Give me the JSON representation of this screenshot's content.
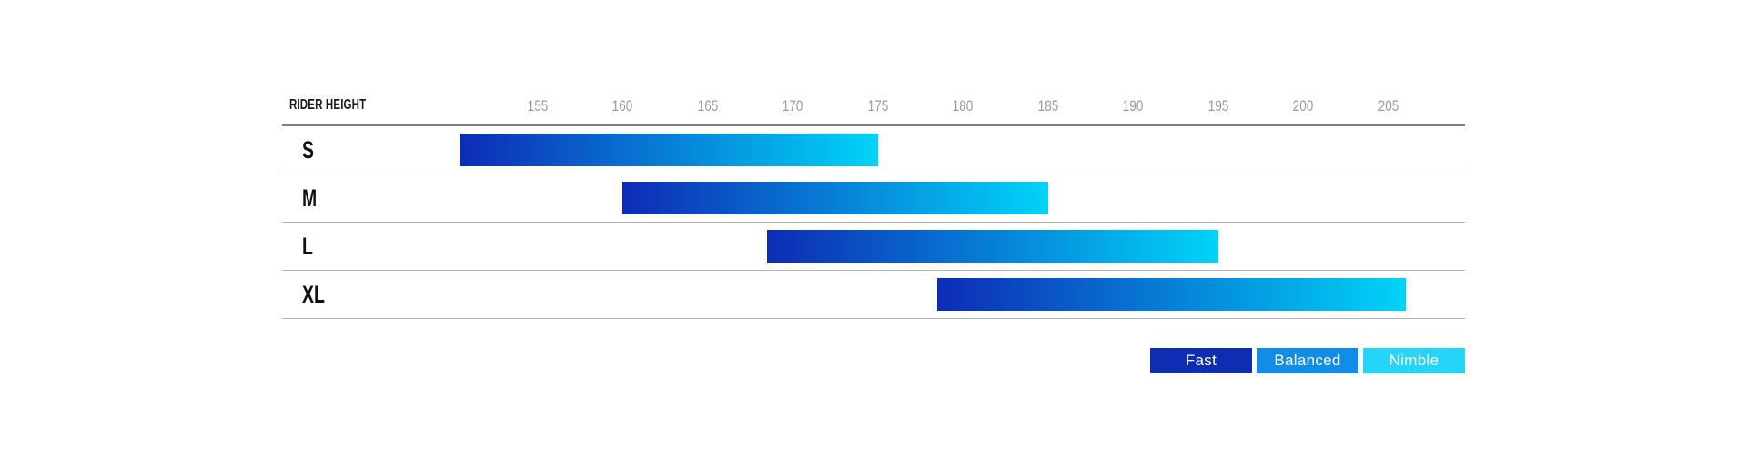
{
  "chart": {
    "header_label": "RIDER HEIGHT"
  },
  "chart_data": {
    "type": "bar",
    "variant": "horizontal-range-bars",
    "title": "RIDER HEIGHT",
    "unit": "cm",
    "axis": {
      "min": 140,
      "max": 209.5,
      "tick_step": 5,
      "ticks": [
        155,
        160,
        165,
        170,
        175,
        180,
        185,
        190,
        195,
        200,
        205
      ]
    },
    "rows": [
      {
        "size": "S",
        "range": [
          150.5,
          175
        ]
      },
      {
        "size": "M",
        "range": [
          160,
          185
        ]
      },
      {
        "size": "L",
        "range": [
          168.5,
          195
        ]
      },
      {
        "size": "XL",
        "range": [
          178.5,
          206
        ]
      }
    ],
    "bar_gradient": {
      "start": "#0d2cb5",
      "end": "#00d3f8"
    },
    "legend": [
      {
        "label": "Fast",
        "color": "#0d2db2"
      },
      {
        "label": "Balanced",
        "color": "#118de8"
      },
      {
        "label": "Nimble",
        "color": "#25d5f7"
      }
    ],
    "legend_position": "bottom-right",
    "grid": "horizontal-row-lines",
    "colors": {
      "tick_text": "#9b9b9b",
      "label_text": "#1c1c1c",
      "header_line": "#7d7d7d",
      "row_line": "#b5b5b5"
    }
  }
}
